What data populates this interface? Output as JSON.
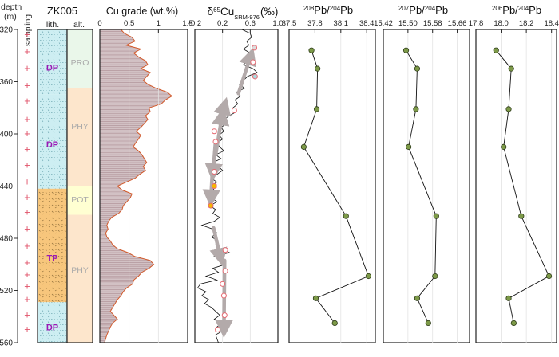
{
  "drill_hole": "ZK005",
  "depth_label": [
    "depth",
    "(m)"
  ],
  "column_labels": {
    "sampling": "sampling",
    "lith": "lith.",
    "alt": "alt."
  },
  "depth_axis": {
    "min": 320,
    "max": 560,
    "ticks": [
      320,
      360,
      400,
      440,
      480,
      520,
      560
    ]
  },
  "sampling_marks": [
    324,
    337,
    350,
    363,
    375,
    389,
    400,
    412,
    424,
    437,
    449,
    460,
    473,
    486,
    499,
    508,
    517,
    527,
    539,
    550
  ],
  "lithology": [
    {
      "code": "DP",
      "top": 320,
      "bottom": 370,
      "label_depth": 349
    },
    {
      "code": "DP",
      "top": 370,
      "bottom": 442,
      "label_depth": 408
    },
    {
      "code": "TP",
      "top": 442,
      "bottom": 529,
      "label_depth": 495
    },
    {
      "code": "DP",
      "top": 529,
      "bottom": 560,
      "label_depth": 548
    }
  ],
  "alteration": [
    {
      "code": "PRO",
      "top": 320,
      "bottom": 365,
      "label_depth": 345,
      "color": "#eaf7ea"
    },
    {
      "code": "PHY",
      "top": 365,
      "bottom": 440,
      "label_depth": 394,
      "color": "#fde6cc"
    },
    {
      "code": "POT",
      "top": 440,
      "bottom": 462,
      "label_depth": 450,
      "color": "#ffffd2"
    },
    {
      "code": "PHY",
      "top": 462,
      "bottom": 560,
      "label_depth": 504,
      "color": "#fde6cc"
    }
  ],
  "colors": {
    "dp_fill": "#cdeef2",
    "tp_fill": "#f7c67c",
    "lith_label": "#9a18b5",
    "cu_bar": "#ad8e93",
    "cu_outline": "#d2592a",
    "sampling_plus": "#e0546b",
    "pb_marker": "#7d9a48",
    "cu_gray_arrow": "#b3aaaa",
    "cu_sample_red": "#e66a72",
    "cu_marker_blue": "#a9d9de",
    "cu_marker_yellow": "#f5b800"
  },
  "chart_data": [
    {
      "type": "bar",
      "title": "Cu grade (wt.%)",
      "orientation": "horizontal",
      "xlim": [
        0,
        1.5
      ],
      "xticks": [
        "0",
        "0.5",
        "1",
        "1.5"
      ],
      "ylim": [
        320,
        560
      ],
      "profile": [
        [
          320,
          0.36
        ],
        [
          323,
          0.42
        ],
        [
          326,
          0.55
        ],
        [
          329,
          0.6
        ],
        [
          332,
          0.45
        ],
        [
          335,
          0.7
        ],
        [
          338,
          0.58
        ],
        [
          341,
          0.66
        ],
        [
          344,
          0.78
        ],
        [
          347,
          0.82
        ],
        [
          350,
          0.7
        ],
        [
          353,
          0.86
        ],
        [
          356,
          0.8
        ],
        [
          359,
          0.74
        ],
        [
          362,
          0.82
        ],
        [
          365,
          0.96
        ],
        [
          368,
          1.15
        ],
        [
          371,
          1.23
        ],
        [
          374,
          1.12
        ],
        [
          377,
          1.05
        ],
        [
          380,
          0.84
        ],
        [
          383,
          0.86
        ],
        [
          386,
          0.78
        ],
        [
          389,
          0.82
        ],
        [
          392,
          0.76
        ],
        [
          395,
          0.7
        ],
        [
          398,
          0.62
        ],
        [
          401,
          0.7
        ],
        [
          404,
          0.66
        ],
        [
          407,
          0.61
        ],
        [
          410,
          0.57
        ],
        [
          413,
          0.66
        ],
        [
          416,
          0.72
        ],
        [
          419,
          0.76
        ],
        [
          422,
          0.8
        ],
        [
          425,
          0.74
        ],
        [
          428,
          0.78
        ],
        [
          431,
          0.68
        ],
        [
          434,
          0.6
        ],
        [
          437,
          0.45
        ],
        [
          440,
          0.3
        ],
        [
          443,
          0.38
        ],
        [
          446,
          0.55
        ],
        [
          449,
          0.52
        ],
        [
          452,
          0.46
        ],
        [
          455,
          0.4
        ],
        [
          458,
          0.38
        ],
        [
          461,
          0.32
        ],
        [
          464,
          0.2
        ],
        [
          467,
          0.15
        ],
        [
          470,
          0.12
        ],
        [
          473,
          0.14
        ],
        [
          476,
          0.1
        ],
        [
          479,
          0.12
        ],
        [
          482,
          0.18
        ],
        [
          485,
          0.22
        ],
        [
          488,
          0.3
        ],
        [
          491,
          0.48
        ],
        [
          494,
          0.6
        ],
        [
          497,
          0.86
        ],
        [
          500,
          0.92
        ],
        [
          503,
          0.84
        ],
        [
          506,
          0.72
        ],
        [
          509,
          0.66
        ],
        [
          512,
          0.58
        ],
        [
          515,
          0.56
        ],
        [
          518,
          0.46
        ],
        [
          521,
          0.4
        ],
        [
          524,
          0.36
        ],
        [
          527,
          0.3
        ],
        [
          530,
          0.26
        ],
        [
          533,
          0.22
        ],
        [
          536,
          0.18
        ],
        [
          539,
          0.24
        ],
        [
          542,
          0.3
        ],
        [
          545,
          0.22
        ],
        [
          548,
          0.18
        ],
        [
          551,
          0.15
        ],
        [
          554,
          0.12
        ],
        [
          557,
          0.1
        ],
        [
          560,
          0.08
        ]
      ]
    },
    {
      "type": "line",
      "title_main": "δ",
      "title_sup": "65",
      "title_element": "Cu",
      "title_sub": "SRM-976",
      "title_unit": "(‰)",
      "xlim": [
        -0.2,
        1.0
      ],
      "xticks": [
        "-0.2",
        "0.2",
        "0.6",
        "1.0"
      ],
      "xtick_values": [
        -0.2,
        0.2,
        0.6,
        1.0
      ],
      "ylim": [
        320,
        560
      ],
      "profile": [
        [
          320,
          0.48
        ],
        [
          323,
          0.6
        ],
        [
          326,
          0.62
        ],
        [
          329,
          0.55
        ],
        [
          332,
          0.58
        ],
        [
          335,
          0.5
        ],
        [
          338,
          0.6
        ],
        [
          341,
          0.66
        ],
        [
          344,
          0.58
        ],
        [
          347,
          0.5
        ],
        [
          350,
          0.64
        ],
        [
          353,
          0.7
        ],
        [
          356,
          0.56
        ],
        [
          359,
          0.5
        ],
        [
          362,
          0.44
        ],
        [
          365,
          0.52
        ],
        [
          368,
          0.4
        ],
        [
          371,
          0.46
        ],
        [
          374,
          0.38
        ],
        [
          377,
          0.42
        ],
        [
          380,
          0.35
        ],
        [
          383,
          0.4
        ],
        [
          386,
          0.3
        ],
        [
          389,
          0.22
        ],
        [
          392,
          0.26
        ],
        [
          395,
          0.18
        ],
        [
          398,
          0.22
        ],
        [
          401,
          0.15
        ],
        [
          404,
          0.2
        ],
        [
          407,
          0.12
        ],
        [
          410,
          0.16
        ],
        [
          413,
          0.22
        ],
        [
          416,
          0.1
        ],
        [
          419,
          0.18
        ],
        [
          422,
          0.06
        ],
        [
          425,
          0.14
        ],
        [
          428,
          0.2
        ],
        [
          431,
          0.12
        ],
        [
          434,
          0.04
        ],
        [
          437,
          0.12
        ],
        [
          440,
          0.02
        ],
        [
          443,
          0.08
        ],
        [
          446,
          0.14
        ],
        [
          449,
          0.04
        ],
        [
          452,
          0.12
        ],
        [
          455,
          0.02
        ],
        [
          458,
          0.1
        ],
        [
          461,
          0.06
        ],
        [
          464,
          0.16
        ],
        [
          467,
          0.08
        ],
        [
          470,
          -0.1
        ],
        [
          473,
          0.06
        ],
        [
          476,
          0.12
        ],
        [
          479,
          0.04
        ],
        [
          482,
          0.14
        ],
        [
          485,
          0.1
        ],
        [
          488,
          0.16
        ],
        [
          491,
          0.3
        ],
        [
          494,
          0.08
        ],
        [
          497,
          0.2
        ],
        [
          500,
          0.24
        ],
        [
          503,
          0.06
        ],
        [
          506,
          0.14
        ],
        [
          509,
          -0.04
        ],
        [
          512,
          0.12
        ],
        [
          515,
          -0.12
        ],
        [
          518,
          -0.16
        ],
        [
          521,
          -0.04
        ],
        [
          524,
          -0.1
        ],
        [
          527,
          0.0
        ],
        [
          530,
          -0.06
        ],
        [
          533,
          0.04
        ],
        [
          536,
          0.1
        ],
        [
          539,
          0.16
        ],
        [
          542,
          0.08
        ],
        [
          545,
          0.2
        ],
        [
          548,
          0.12
        ],
        [
          551,
          0.2
        ],
        [
          554,
          0.1
        ],
        [
          557,
          0.12
        ],
        [
          560,
          0.14
        ]
      ],
      "samples": [
        {
          "depth": 334,
          "value": 0.66,
          "fill": "#dcdcdc",
          "error": 0.03
        },
        {
          "depth": 345,
          "value": 0.64,
          "fill": "#ffffff",
          "error": 0
        },
        {
          "depth": 356,
          "value": 0.67,
          "fill": "#a9d9de",
          "error": 0
        },
        {
          "depth": 382,
          "value": 0.37,
          "fill": "#ffffff",
          "error": 0
        },
        {
          "depth": 398,
          "value": 0.08,
          "fill": "#ffffff",
          "error": 0.03
        },
        {
          "depth": 406,
          "value": 0.1,
          "fill": "#ffffff",
          "error": 0
        },
        {
          "depth": 429,
          "value": 0.08,
          "fill": "#ffffff",
          "error": 0.03
        },
        {
          "depth": 440,
          "value": 0.08,
          "fill": "#f5b800",
          "error": 0.03
        },
        {
          "depth": 455,
          "value": 0.03,
          "fill": "#f5b800",
          "error": 0.03
        },
        {
          "depth": 489,
          "value": 0.24,
          "fill": "#ffffff",
          "error": 0.03
        },
        {
          "depth": 505,
          "value": 0.24,
          "fill": "#ffffff",
          "error": 0
        },
        {
          "depth": 515,
          "value": 0.2,
          "fill": "#ffffff",
          "error": 0
        },
        {
          "depth": 524,
          "value": 0.22,
          "fill": "#ffffff",
          "error": 0
        },
        {
          "depth": 539,
          "value": 0.23,
          "fill": "#ffffff",
          "error": 0
        },
        {
          "depth": 550,
          "value": 0.13,
          "fill": "#ffffff",
          "error": 0.03
        }
      ],
      "trend_arrows": [
        {
          "from": [
            0.1,
            416
          ],
          "to": [
            0.2,
            384
          ]
        },
        {
          "from": [
            0.2,
            384
          ],
          "to": [
            0.24,
            376
          ]
        },
        {
          "from": [
            0.43,
            369
          ],
          "to": [
            0.62,
            338
          ]
        },
        {
          "from": [
            0.1,
            405
          ],
          "to": [
            0.06,
            432
          ]
        },
        {
          "from": [
            0.05,
            432
          ],
          "to": [
            0.03,
            452
          ]
        },
        {
          "from": [
            0.07,
            472
          ],
          "to": [
            0.18,
            497
          ]
        },
        {
          "from": [
            0.23,
            497
          ],
          "to": [
            0.22,
            552
          ]
        }
      ]
    },
    {
      "type": "line",
      "title_sup": "208",
      "title_mid": "Pb/",
      "title_sup2": "204",
      "title_end": "Pb",
      "xlim": [
        37.5,
        38.5
      ],
      "xticks": [
        "37.5",
        "37.8",
        "38.1",
        "38.4"
      ],
      "xtick_values": [
        37.5,
        37.8,
        38.1,
        38.4
      ],
      "ylim": [
        320,
        560
      ],
      "points": [
        [
          37.76,
          336
        ],
        [
          37.83,
          350
        ],
        [
          37.82,
          381
        ],
        [
          37.67,
          410
        ],
        [
          38.16,
          463
        ],
        [
          38.42,
          509
        ],
        [
          37.81,
          526
        ],
        [
          38.03,
          545
        ]
      ]
    },
    {
      "type": "line",
      "title_sup": "207",
      "title_mid": "Pb/",
      "title_sup2": "204",
      "title_end": "Pb",
      "xlim": [
        15.42,
        15.7
      ],
      "xticks": [
        "15.42",
        "15.50",
        "15.58",
        "15.66"
      ],
      "xtick_values": [
        15.42,
        15.5,
        15.58,
        15.66
      ],
      "ylim": [
        320,
        560
      ],
      "points": [
        [
          15.494,
          336
        ],
        [
          15.53,
          350
        ],
        [
          15.526,
          381
        ],
        [
          15.502,
          410
        ],
        [
          15.592,
          463
        ],
        [
          15.588,
          509
        ],
        [
          15.53,
          526
        ],
        [
          15.566,
          545
        ]
      ]
    },
    {
      "type": "line",
      "title_sup": "206",
      "title_mid": "Pb/",
      "title_sup2": "204",
      "title_end": "Pb",
      "xlim": [
        17.8,
        18.44
      ],
      "xticks": [
        "17.8",
        "18.0",
        "18.2",
        "18.4"
      ],
      "xtick_values": [
        17.8,
        18.0,
        18.2,
        18.4
      ],
      "ylim": [
        320,
        560
      ],
      "points": [
        [
          17.96,
          336
        ],
        [
          18.08,
          350
        ],
        [
          18.06,
          381
        ],
        [
          18.02,
          410
        ],
        [
          18.16,
          463
        ],
        [
          18.38,
          509
        ],
        [
          18.06,
          526
        ],
        [
          18.1,
          545
        ]
      ]
    }
  ]
}
